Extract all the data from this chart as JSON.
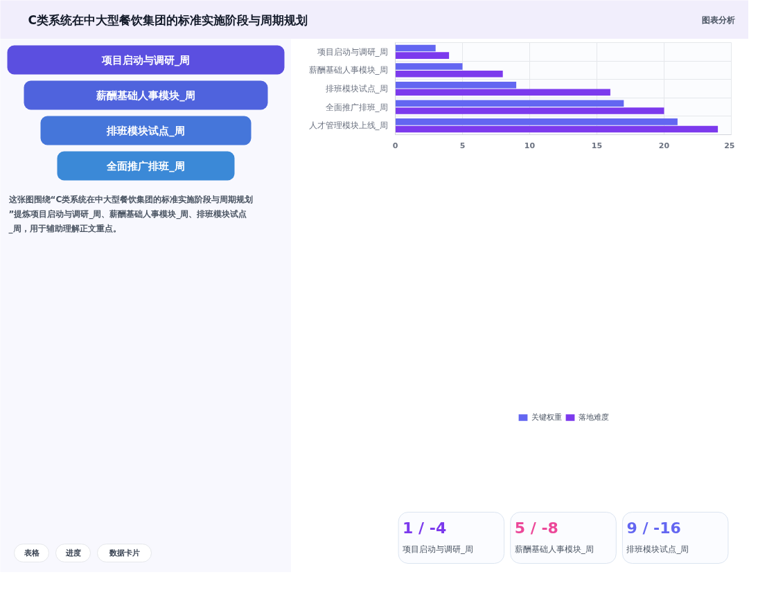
{
  "chart_data": [
    {
      "type": "other",
      "title": "C类系统在中大型餐饮集团的标准实施阶段与周期规划",
      "categories": [
        "项目启动与调研_周",
        "薪酬基础人事模块_周",
        "排班模块试点_周",
        "全面推广排班_周"
      ],
      "annotations": [
        "图表分析",
        "这张图围绕“C类系统在中大型餐饮集团的标准实施阶段与周期规划”提炼项目启动与调研_周、薪酬基础人事模块_周、排班模块试点_周，用于辅助理解正文重点。",
        "表格",
        "进度",
        "数据卡片"
      ]
    },
    {
      "type": "bar",
      "orientation": "horizontal",
      "categories": [
        "项目启动与调研_周",
        "薪酬基础人事模块_周",
        "排班模块试点_周",
        "全面推广排班_周",
        "人才管理模块上线_周"
      ],
      "series": [
        {
          "name": "关键权重",
          "color": "#6366f1",
          "values": [
            3,
            5,
            9,
            17,
            21
          ]
        },
        {
          "name": "落地难度",
          "color": "#7c3aed",
          "values": [
            4,
            8,
            16,
            20,
            24
          ]
        }
      ],
      "xlim": [
        0,
        25
      ],
      "xticks": [
        0,
        5,
        10,
        15,
        20,
        25
      ],
      "grid": true,
      "legend": "bottom"
    },
    {
      "type": "other",
      "annotations": [
        "1 / -4",
        "项目启动与调研_周",
        "5 / -8",
        "薪酬基础人事模块_周",
        "9 / -16",
        "排班模块试点_周"
      ]
    }
  ]
}
